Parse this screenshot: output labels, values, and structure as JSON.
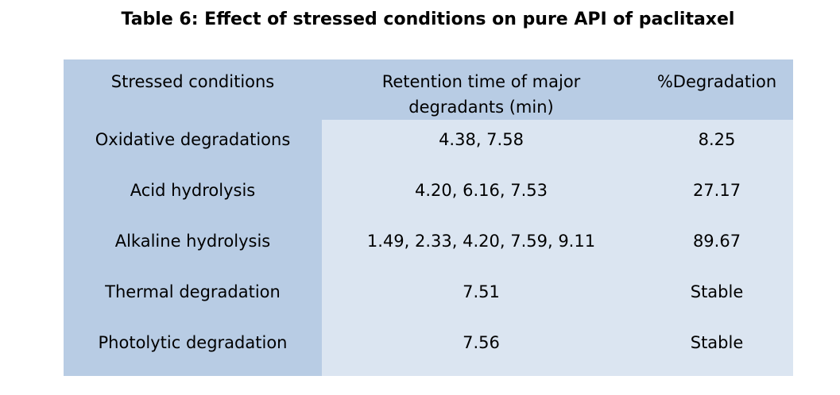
{
  "caption": "Table 6: Effect of stressed conditions on pure API of paclitaxel",
  "colors": {
    "header_band": "#b8cce4",
    "first_column": "#b8cce4",
    "body_cells": "#dbe5f1"
  },
  "table": {
    "headers": {
      "condition": "Stressed conditions",
      "retention_line1": "Retention time of major",
      "retention_line2": "degradants (min)",
      "degradation": "%Degradation"
    },
    "rows": [
      {
        "condition": "Oxidative degradations",
        "retention": "4.38, 7.58",
        "degradation": "8.25"
      },
      {
        "condition": "Acid hydrolysis",
        "retention": "4.20, 6.16, 7.53",
        "degradation": "27.17"
      },
      {
        "condition": "Alkaline hydrolysis",
        "retention": "1.49, 2.33, 4.20, 7.59, 9.11",
        "degradation": "89.67"
      },
      {
        "condition": "Thermal degradation",
        "retention": "7.51",
        "degradation": "Stable"
      },
      {
        "condition": "Photolytic degradation",
        "retention": "7.56",
        "degradation": "Stable"
      }
    ]
  }
}
